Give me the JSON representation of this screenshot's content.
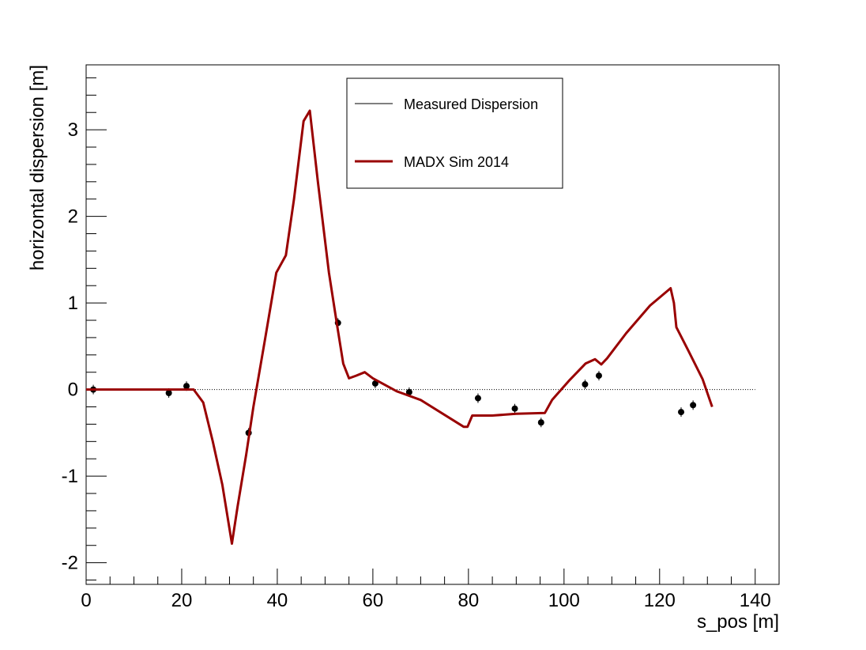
{
  "chart_data": {
    "type": "line",
    "xlabel": "s_pos [m]",
    "ylabel": "horizontal dispersion [m]",
    "xlim": [
      0,
      145
    ],
    "ylim": [
      -2.25,
      3.75
    ],
    "x_ticks": [
      0,
      20,
      40,
      60,
      80,
      100,
      120,
      140
    ],
    "y_ticks": [
      -2,
      -1,
      0,
      1,
      2,
      3
    ],
    "x_tick_labels": [
      "0",
      "20",
      "40",
      "60",
      "80",
      "100",
      "120",
      "140"
    ],
    "y_tick_labels": [
      "-2",
      "-1",
      "0",
      "1",
      "2",
      "3"
    ],
    "legend": {
      "position": "top-center",
      "entries": [
        "Measured Dispersion",
        "MADX Sim 2014"
      ]
    },
    "reference_line": {
      "y": 0,
      "x_range": [
        0,
        140
      ],
      "style": "dotted"
    },
    "series": [
      {
        "name": "Measured Dispersion",
        "kind": "points",
        "color": "#000000",
        "points": [
          [
            1.5,
            0.0
          ],
          [
            17.3,
            -0.04
          ],
          [
            21.0,
            0.04
          ],
          [
            34.0,
            -0.5
          ],
          [
            52.7,
            0.77
          ],
          [
            60.5,
            0.07
          ],
          [
            67.6,
            -0.03
          ],
          [
            82.0,
            -0.1
          ],
          [
            89.7,
            -0.22
          ],
          [
            95.2,
            -0.38
          ],
          [
            104.4,
            0.06
          ],
          [
            107.3,
            0.16
          ],
          [
            124.5,
            -0.26
          ],
          [
            127.0,
            -0.18
          ]
        ]
      },
      {
        "name": "MADX Sim 2014",
        "kind": "line",
        "color": "#990000",
        "points": [
          [
            0,
            0.0
          ],
          [
            22.5,
            0.0
          ],
          [
            24.5,
            -0.15
          ],
          [
            26.5,
            -0.6
          ],
          [
            28.5,
            -1.1
          ],
          [
            30.5,
            -1.78
          ],
          [
            31.7,
            -1.35
          ],
          [
            33.5,
            -0.75
          ],
          [
            35.0,
            -0.2
          ],
          [
            37.5,
            0.6
          ],
          [
            39.8,
            1.35
          ],
          [
            41.8,
            1.55
          ],
          [
            43.5,
            2.2
          ],
          [
            45.5,
            3.1
          ],
          [
            46.8,
            3.22
          ],
          [
            48.5,
            2.4
          ],
          [
            50.8,
            1.35
          ],
          [
            52.5,
            0.75
          ],
          [
            53.8,
            0.3
          ],
          [
            55.0,
            0.13
          ],
          [
            56.5,
            0.16
          ],
          [
            58.3,
            0.2
          ],
          [
            60.0,
            0.13
          ],
          [
            65.0,
            -0.02
          ],
          [
            70.0,
            -0.12
          ],
          [
            79.0,
            -0.43
          ],
          [
            79.8,
            -0.43
          ],
          [
            80.8,
            -0.3
          ],
          [
            85.0,
            -0.3
          ],
          [
            90.0,
            -0.28
          ],
          [
            96.0,
            -0.27
          ],
          [
            97.5,
            -0.12
          ],
          [
            101.0,
            0.1
          ],
          [
            104.5,
            0.3
          ],
          [
            106.5,
            0.35
          ],
          [
            107.8,
            0.29
          ],
          [
            109.0,
            0.36
          ],
          [
            113.0,
            0.65
          ],
          [
            118.0,
            0.97
          ],
          [
            122.3,
            1.17
          ],
          [
            123.0,
            1.0
          ],
          [
            123.5,
            0.72
          ],
          [
            126.0,
            0.45
          ],
          [
            129.0,
            0.12
          ],
          [
            131.0,
            -0.2
          ]
        ]
      }
    ]
  }
}
